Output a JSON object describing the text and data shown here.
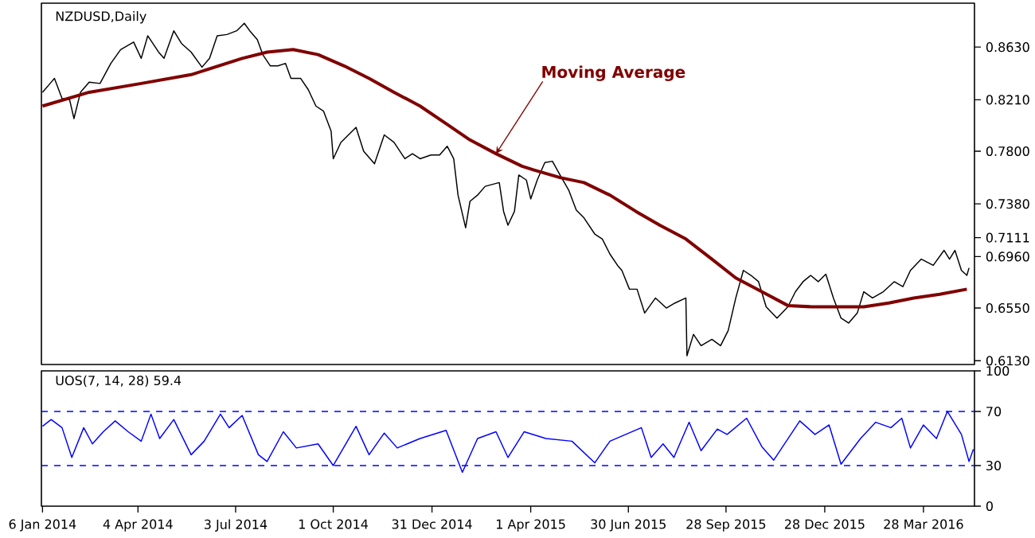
{
  "chart_data": [
    {
      "type": "line",
      "title": "NZDUSD,Daily",
      "annotations": [
        {
          "text": "Moving Average",
          "x": "2015-02-28",
          "y": 0.778
        }
      ],
      "xlim": [
        "2014-01-05",
        "2016-05-14"
      ],
      "ylim": [
        0.61,
        0.898
      ],
      "tick_labels": "y",
      "yticks": [
        {
          "value": 0.863,
          "label": "0.8630"
        },
        {
          "value": 0.821,
          "label": "0.8210"
        },
        {
          "value": 0.78,
          "label": "0.7800"
        },
        {
          "value": 0.738,
          "label": "0.7380"
        },
        {
          "value": 0.7111,
          "label": "0.7111"
        },
        {
          "value": 0.696,
          "label": "0.6960"
        },
        {
          "value": 0.655,
          "label": "0.6550"
        },
        {
          "value": 0.613,
          "label": "0.6130"
        }
      ],
      "series": [
        {
          "type": "line",
          "color": "#000000",
          "x": [
            "2014-01-06",
            "2014-01-13",
            "2014-01-17",
            "2014-01-24",
            "2014-01-31",
            "2014-02-04",
            "2014-02-10",
            "2014-02-18",
            "2014-02-28",
            "2014-03-10",
            "2014-03-19",
            "2014-03-31",
            "2014-04-07",
            "2014-04-13",
            "2014-04-23",
            "2014-04-28",
            "2014-05-07",
            "2014-05-14",
            "2014-05-23",
            "2014-06-02",
            "2014-06-09",
            "2014-06-16",
            "2014-06-25",
            "2014-07-04",
            "2014-07-11",
            "2014-07-16",
            "2014-07-23",
            "2014-07-28",
            "2014-08-04",
            "2014-08-11",
            "2014-08-18",
            "2014-08-23",
            "2014-09-01",
            "2014-09-08",
            "2014-09-15",
            "2014-09-22",
            "2014-09-29",
            "2014-10-01",
            "2014-10-08",
            "2014-10-15",
            "2014-10-22",
            "2014-10-29",
            "2014-11-08",
            "2014-11-17",
            "2014-11-26",
            "2014-12-06",
            "2014-12-13",
            "2014-12-20",
            "2014-12-30",
            "2015-01-07",
            "2015-01-14",
            "2015-01-20",
            "2015-01-24",
            "2015-01-31",
            "2015-02-04",
            "2015-02-11",
            "2015-02-18",
            "2015-03-03",
            "2015-03-07",
            "2015-03-11",
            "2015-03-17",
            "2015-03-21",
            "2015-03-28",
            "2015-04-01",
            "2015-04-07",
            "2015-04-14",
            "2015-04-21",
            "2015-04-28",
            "2015-05-06",
            "2015-05-13",
            "2015-05-20",
            "2015-05-30",
            "2015-06-06",
            "2015-06-13",
            "2015-06-20",
            "2015-06-24",
            "2015-07-01",
            "2015-07-08",
            "2015-07-15",
            "2015-07-25",
            "2015-08-04",
            "2015-08-12",
            "2015-08-22",
            "2015-08-23",
            "2015-08-29",
            "2015-09-05",
            "2015-09-15",
            "2015-09-23",
            "2015-09-30",
            "2015-10-07",
            "2015-10-14",
            "2015-10-21",
            "2015-10-28",
            "2015-11-04",
            "2015-11-14",
            "2015-11-24",
            "2015-12-01",
            "2015-12-08",
            "2015-12-15",
            "2015-12-22",
            "2015-12-29",
            "2016-01-05",
            "2016-01-12",
            "2016-01-19",
            "2016-01-27",
            "2016-02-02",
            "2016-02-10",
            "2016-02-20",
            "2016-03-01",
            "2016-03-09",
            "2016-03-16",
            "2016-03-26",
            "2016-04-06",
            "2016-04-16",
            "2016-04-21",
            "2016-04-26",
            "2016-05-02",
            "2016-05-07",
            "2016-05-09"
          ],
          "values": [
            0.827,
            0.834,
            0.838,
            0.822,
            0.821,
            0.806,
            0.827,
            0.835,
            0.834,
            0.85,
            0.861,
            0.867,
            0.854,
            0.872,
            0.859,
            0.854,
            0.876,
            0.866,
            0.859,
            0.847,
            0.854,
            0.872,
            0.873,
            0.876,
            0.882,
            0.876,
            0.869,
            0.857,
            0.848,
            0.848,
            0.85,
            0.838,
            0.838,
            0.829,
            0.816,
            0.812,
            0.796,
            0.774,
            0.787,
            0.793,
            0.799,
            0.78,
            0.77,
            0.793,
            0.787,
            0.774,
            0.778,
            0.774,
            0.777,
            0.777,
            0.784,
            0.774,
            0.745,
            0.719,
            0.74,
            0.745,
            0.752,
            0.755,
            0.732,
            0.721,
            0.732,
            0.761,
            0.757,
            0.742,
            0.757,
            0.771,
            0.772,
            0.761,
            0.749,
            0.733,
            0.727,
            0.714,
            0.71,
            0.698,
            0.689,
            0.685,
            0.67,
            0.67,
            0.651,
            0.663,
            0.655,
            0.659,
            0.663,
            0.617,
            0.634,
            0.625,
            0.63,
            0.625,
            0.637,
            0.663,
            0.685,
            0.681,
            0.676,
            0.656,
            0.647,
            0.656,
            0.668,
            0.676,
            0.681,
            0.676,
            0.682,
            0.663,
            0.647,
            0.643,
            0.651,
            0.668,
            0.663,
            0.668,
            0.676,
            0.672,
            0.685,
            0.694,
            0.689,
            0.701,
            0.694,
            0.701,
            0.685,
            0.681,
            0.687
          ]
        },
        {
          "type": "line",
          "color": "#800000",
          "x": [
            "2014-01-06",
            "2014-02-18",
            "2014-04-07",
            "2014-05-23",
            "2014-07-09",
            "2014-08-01",
            "2014-08-25",
            "2014-09-17",
            "2014-10-11",
            "2014-11-03",
            "2014-11-26",
            "2014-12-20",
            "2015-01-13",
            "2015-02-04",
            "2015-02-28",
            "2015-03-24",
            "2015-04-04",
            "2015-04-28",
            "2015-05-20",
            "2015-06-13",
            "2015-07-07",
            "2015-07-29",
            "2015-08-22",
            "2015-09-15",
            "2015-10-07",
            "2015-10-31",
            "2015-11-24",
            "2015-12-16",
            "2016-01-09",
            "2016-02-02",
            "2016-02-25",
            "2016-03-19",
            "2016-04-12",
            "2016-05-07"
          ],
          "values": [
            0.816,
            0.827,
            0.834,
            0.841,
            0.854,
            0.859,
            0.861,
            0.857,
            0.848,
            0.838,
            0.827,
            0.816,
            0.802,
            0.789,
            0.778,
            0.768,
            0.765,
            0.759,
            0.755,
            0.745,
            0.732,
            0.721,
            0.71,
            0.694,
            0.679,
            0.668,
            0.657,
            0.656,
            0.656,
            0.656,
            0.659,
            0.663,
            0.666,
            0.67
          ]
        }
      ]
    },
    {
      "type": "line",
      "title": "UOS(7, 14, 28) 59.4",
      "xlim": [
        "2014-01-05",
        "2016-05-14"
      ],
      "ylim": [
        0,
        100
      ],
      "yticks": [
        0,
        30,
        70,
        100
      ],
      "xticks": [
        {
          "value": "2014-01-06",
          "label": "6 Jan 2014"
        },
        {
          "value": "2014-04-04",
          "label": "4 Apr 2014"
        },
        {
          "value": "2014-07-03",
          "label": "3 Jul 2014"
        },
        {
          "value": "2014-10-01",
          "label": "1 Oct 2014"
        },
        {
          "value": "2014-12-31",
          "label": "31 Dec 2014"
        },
        {
          "value": "2015-04-01",
          "label": "1 Apr 2015"
        },
        {
          "value": "2015-06-30",
          "label": "30 Jun 2015"
        },
        {
          "value": "2015-09-28",
          "label": "28 Sep 2015"
        },
        {
          "value": "2015-12-28",
          "label": "28 Dec 2015"
        },
        {
          "value": "2016-03-28",
          "label": "28 Mar 2016"
        }
      ],
      "ref_lines": [
        {
          "axis": "y",
          "value": 70,
          "color": "#0000ff",
          "line_style": "dashed"
        },
        {
          "axis": "y",
          "value": 30,
          "color": "#0000ff",
          "line_style": "dashed"
        }
      ],
      "series": [
        {
          "type": "line",
          "color": "#0000ff",
          "x": [
            "2014-01-06",
            "2014-01-14",
            "2014-01-24",
            "2014-02-02",
            "2014-02-13",
            "2014-02-21",
            "2014-03-03",
            "2014-03-14",
            "2014-03-26",
            "2014-04-07",
            "2014-04-16",
            "2014-04-24",
            "2014-05-07",
            "2014-05-23",
            "2014-06-04",
            "2014-06-19",
            "2014-06-27",
            "2014-07-09",
            "2014-07-24",
            "2014-08-01",
            "2014-08-16",
            "2014-08-28",
            "2014-09-17",
            "2014-10-01",
            "2014-10-22",
            "2014-11-03",
            "2014-11-17",
            "2014-11-29",
            "2014-12-20",
            "2015-01-13",
            "2015-01-28",
            "2015-02-11",
            "2015-02-28",
            "2015-03-11",
            "2015-03-26",
            "2015-04-15",
            "2015-05-09",
            "2015-05-30",
            "2015-06-13",
            "2015-07-12",
            "2015-07-21",
            "2015-08-01",
            "2015-08-11",
            "2015-08-25",
            "2015-09-05",
            "2015-09-20",
            "2015-09-29",
            "2015-10-17",
            "2015-10-31",
            "2015-11-11",
            "2015-12-05",
            "2015-12-19",
            "2016-01-01",
            "2016-01-12",
            "2016-01-30",
            "2016-02-13",
            "2016-02-27",
            "2016-03-08",
            "2016-03-16",
            "2016-03-28",
            "2016-04-09",
            "2016-04-19",
            "2016-05-02",
            "2016-05-09",
            "2016-05-13"
          ],
          "values": [
            59,
            64,
            58,
            36,
            58,
            46,
            55,
            63,
            55,
            48,
            68,
            50,
            64,
            38,
            48,
            68,
            58,
            67,
            38,
            33,
            55,
            43,
            46,
            30,
            59,
            38,
            54,
            43,
            50,
            56,
            25,
            50,
            55,
            36,
            55,
            50,
            48,
            32,
            48,
            58,
            36,
            46,
            36,
            62,
            41,
            57,
            53,
            65,
            44,
            34,
            63,
            53,
            60,
            31,
            50,
            62,
            58,
            65,
            43,
            60,
            50,
            70,
            53,
            33,
            42
          ]
        }
      ]
    }
  ]
}
